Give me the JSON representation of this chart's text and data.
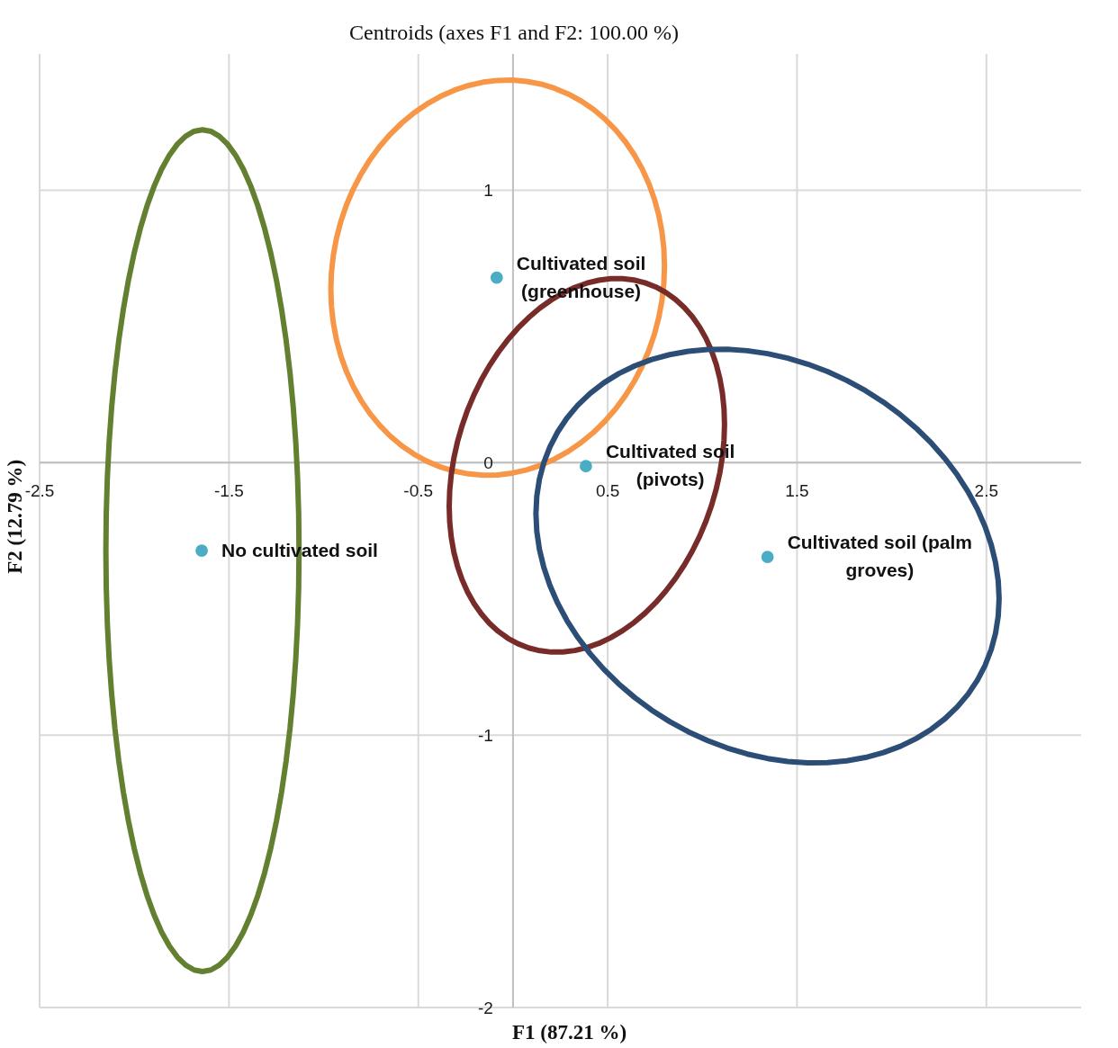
{
  "chart_data": {
    "type": "scatter",
    "title": "Centroids (axes F1 and F2: 100.00 %)",
    "xlabel": "F1 (87.21 %)",
    "ylabel": "F2 (12.79 %)",
    "xlim": [
      -2.5,
      3
    ],
    "ylim": [
      -2,
      1.5
    ],
    "xticks": [
      -2.5,
      -1.5,
      -0.5,
      0.5,
      1.5,
      2.5
    ],
    "yticks": [
      -2,
      -1,
      0,
      1
    ],
    "grid": true,
    "marker": "circle",
    "series": [
      {
        "color": "#4bacc6",
        "x": [
          -1.644,
          -0.086,
          0.385,
          1.344
        ],
        "values": [
          -0.323,
          0.679,
          -0.013,
          -0.346
        ]
      }
    ],
    "annotations": [
      {
        "text": "No cultivated soil",
        "x": -1.644,
        "y": -0.323
      },
      {
        "text": "Cultivated soil (greenhouse)",
        "x": -0.086,
        "y": 0.679
      },
      {
        "text": "Cultivated soil (pivots)",
        "x": 0.385,
        "y": -0.013
      },
      {
        "text": "Cultivated soil (palm groves)",
        "x": 1.344,
        "y": -0.346
      }
    ]
  }
}
